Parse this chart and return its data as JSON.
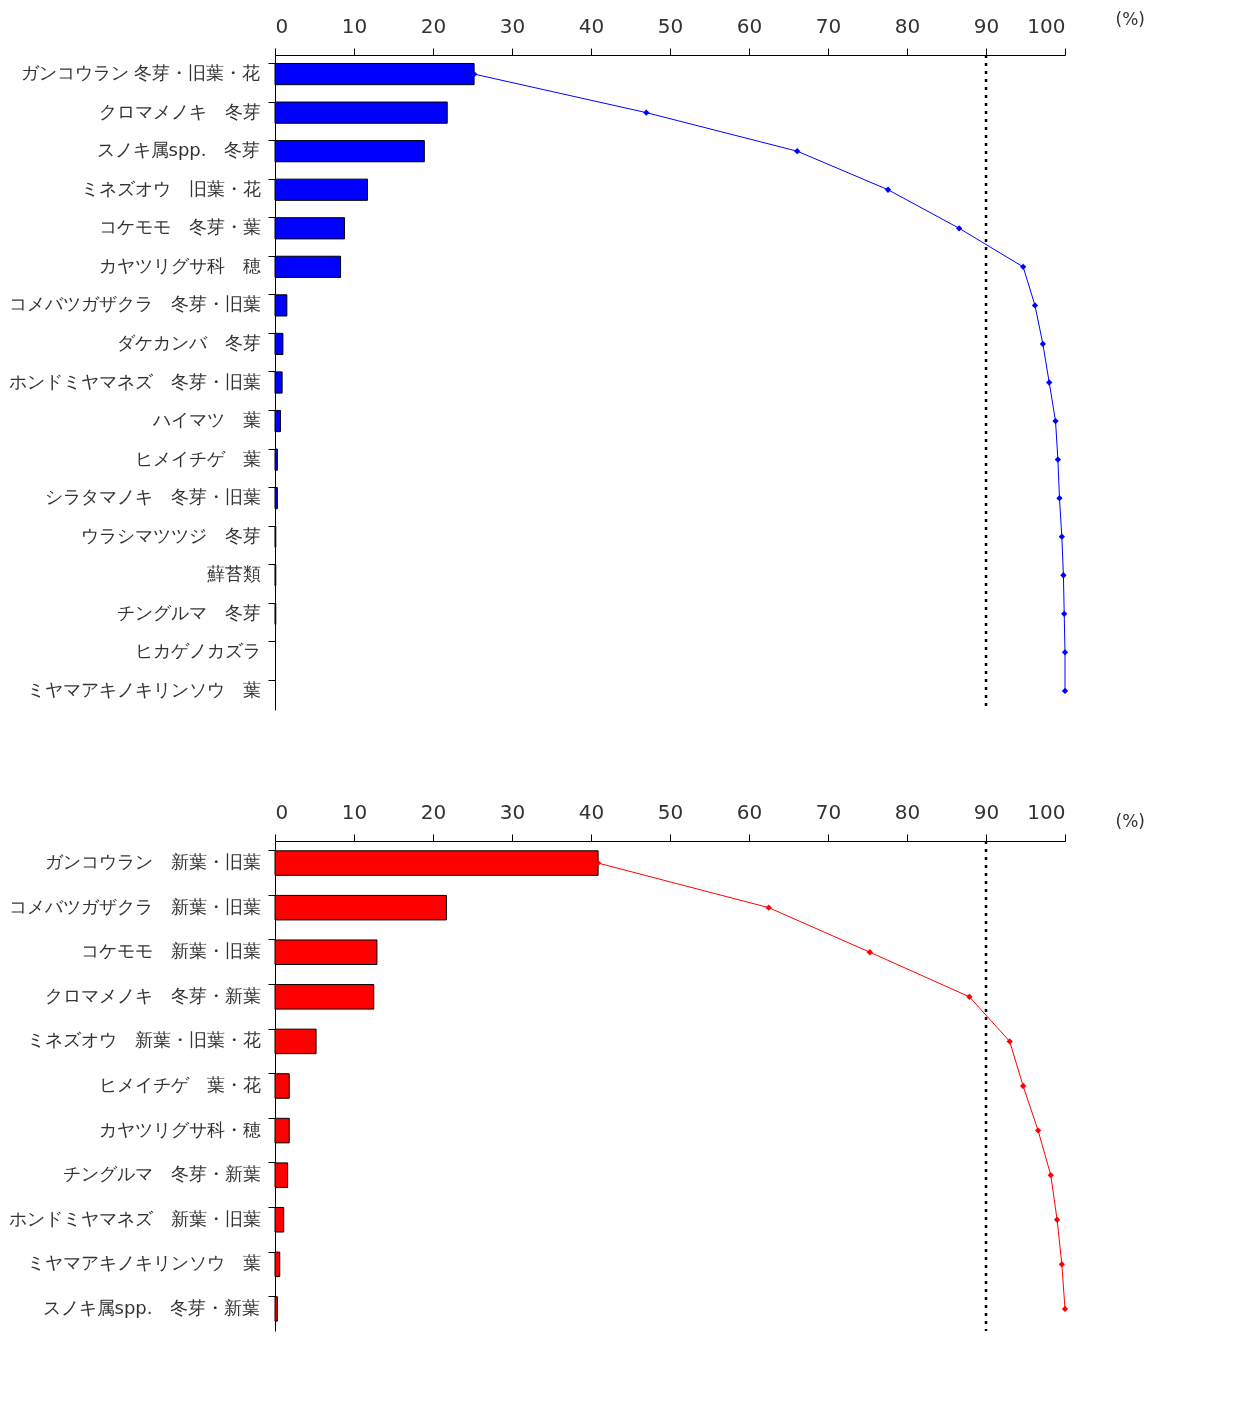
{
  "chart_data": [
    {
      "type": "bar",
      "orientation": "horizontal",
      "xlabel": "(%)",
      "xlim": [
        0,
        100
      ],
      "xticks": [
        0,
        10,
        20,
        30,
        40,
        50,
        60,
        70,
        80,
        90,
        100
      ],
      "categories": [
        "ガンコウラン 冬芽・旧葉・花",
        "クロマメノキ　冬芽",
        "スノキ属spp.　冬芽",
        "ミネズオウ　旧葉・花",
        "コケモモ　冬芽・葉",
        "カヤツリグサ科　穂",
        "コメバツガザクラ　冬芽・旧葉",
        "ダケカンバ　冬芽",
        "ホンドミヤマネズ　冬芽・旧葉",
        "ハイマツ　葉",
        "ヒメイチゲ　葉",
        "シラタマノキ　冬芽・旧葉",
        "ウラシマツツジ　冬芽",
        "蘚苔類",
        "チングルマ　冬芽",
        "ヒカゲノカズラ",
        "ミヤマアキノキリンソウ　葉"
      ],
      "series": [
        {
          "type": "bar",
          "color": "#0000ff",
          "values": [
            25.2,
            21.8,
            18.9,
            11.7,
            8.8,
            8.3,
            1.5,
            1.0,
            0.9,
            0.7,
            0.3,
            0.3,
            0.1,
            0.1,
            0.1,
            0,
            0
          ]
        },
        {
          "type": "line",
          "color": "#0000ff",
          "marker": "diamond",
          "values": [
            25.2,
            47.0,
            66.1,
            77.6,
            86.6,
            94.7,
            96.2,
            97.2,
            98.0,
            98.8,
            99.1,
            99.3,
            99.6,
            99.8,
            99.9,
            100,
            100
          ]
        }
      ],
      "ref_lines": [
        {
          "axis": "x",
          "value": 90,
          "color": "#000000",
          "line_style": "dotted"
        }
      ]
    },
    {
      "type": "bar",
      "orientation": "horizontal",
      "xlabel": "(%)",
      "xlim": [
        0,
        100
      ],
      "xticks": [
        0,
        10,
        20,
        30,
        40,
        50,
        60,
        70,
        80,
        90,
        100
      ],
      "categories": [
        "ガンコウラン　新葉・旧葉",
        "コメバツガザクラ　新葉・旧葉",
        "コケモモ　新葉・旧葉",
        "クロマメノキ　冬芽・新葉",
        "ミネズオウ　新葉・旧葉・花",
        "ヒメイチゲ　葉・花",
        "カヤツリグサ科・穂",
        "チングルマ　冬芽・新葉",
        "ホンドミヤマネズ　新葉・旧葉",
        "ミヤマアキノキリンソウ　葉",
        "スノキ属spp.　冬芽・新葉"
      ],
      "series": [
        {
          "type": "bar",
          "color": "#ff0000",
          "values": [
            40.9,
            21.7,
            12.9,
            12.5,
            5.2,
            1.8,
            1.8,
            1.6,
            1.1,
            0.6,
            0.3
          ]
        },
        {
          "type": "line",
          "color": "#ff0000",
          "marker": "diamond",
          "values": [
            40.9,
            62.5,
            75.3,
            87.9,
            93.0,
            94.7,
            96.6,
            98.2,
            99.0,
            99.6,
            100
          ]
        }
      ],
      "ref_lines": [
        {
          "axis": "x",
          "value": 90,
          "color": "#000000",
          "line_style": "dotted"
        }
      ]
    }
  ]
}
